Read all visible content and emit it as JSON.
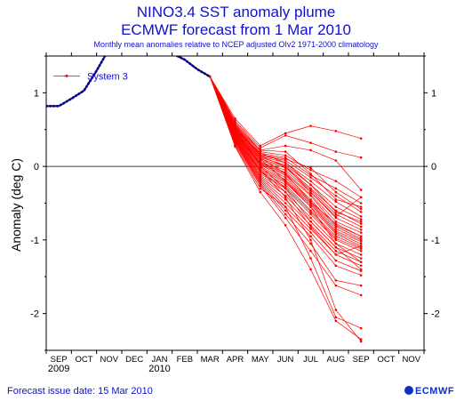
{
  "title_line1": "NINO3.4 SST anomaly plume",
  "title_line2": "ECMWF forecast from 1 Mar 2010",
  "subtitle": "Monthly mean anomalies relative to NCEP adjusted OIv2 1971-2000 climatology",
  "issue_date": "Forecast issue date: 15 Mar 2010",
  "logo_text": "ECMWF",
  "colors": {
    "title": "#1010cc",
    "forecast": "#ff0000",
    "observed": "#000080",
    "axis": "#000000"
  },
  "chart_data": {
    "type": "line",
    "ylabel": "Anomaly (deg C)",
    "xlabel": "",
    "ylim": [
      -2.5,
      1.5
    ],
    "xlim": [
      -0.5,
      14.5
    ],
    "yticks": [
      -2,
      -1,
      0,
      1
    ],
    "month_labels": [
      "SEP",
      "OCT",
      "NOV",
      "DEC",
      "JAN",
      "FEB",
      "MAR",
      "APR",
      "MAY",
      "JUN",
      "JUL",
      "AUG",
      "SEP",
      "OCT",
      "NOV"
    ],
    "year_labels": [
      {
        "label": "2009",
        "x": 0
      },
      {
        "label": "2010",
        "x": 4
      }
    ],
    "legend": {
      "label": "System 3",
      "position": "top-left"
    },
    "observed": {
      "x": [
        -0.5,
        0,
        0.5,
        1,
        1.5,
        2,
        3,
        4,
        5,
        5.5,
        6
      ],
      "y": [
        0.82,
        0.82,
        0.92,
        1.03,
        1.3,
        1.6,
        1.78,
        1.62,
        1.45,
        1.32,
        1.22
      ]
    },
    "forecast": {
      "series_label": "System 3",
      "x": [
        6,
        7,
        8,
        9,
        10,
        11,
        12
      ],
      "members": [
        [
          1.22,
          0.65,
          0.28,
          0.45,
          0.55,
          0.48,
          0.38
        ],
        [
          1.22,
          0.62,
          0.25,
          0.42,
          0.32,
          0.2,
          0.12
        ],
        [
          1.22,
          0.6,
          0.22,
          0.28,
          0.22,
          0.08,
          -0.32
        ],
        [
          1.22,
          0.58,
          0.2,
          0.15,
          -0.05,
          -0.2,
          -0.42
        ],
        [
          1.22,
          0.56,
          0.18,
          0.12,
          -0.12,
          -0.3,
          -0.5
        ],
        [
          1.22,
          0.55,
          0.16,
          0.1,
          -0.02,
          -0.35,
          -0.58
        ],
        [
          1.22,
          0.54,
          0.15,
          0.08,
          -0.15,
          -0.4,
          -0.62
        ],
        [
          1.22,
          0.53,
          0.14,
          0.05,
          -0.2,
          -0.48,
          -0.68
        ],
        [
          1.22,
          0.52,
          0.12,
          0.02,
          -0.25,
          -0.55,
          -0.72
        ],
        [
          1.22,
          0.51,
          0.1,
          0.0,
          -0.3,
          -0.6,
          -0.78
        ],
        [
          1.22,
          0.5,
          0.08,
          -0.02,
          -0.32,
          -0.65,
          -0.82
        ],
        [
          1.22,
          0.49,
          0.06,
          -0.05,
          -0.35,
          -0.7,
          -0.86
        ],
        [
          1.22,
          0.48,
          0.05,
          -0.08,
          -0.38,
          -0.75,
          -0.9
        ],
        [
          1.22,
          0.47,
          0.04,
          -0.1,
          -0.4,
          -0.8,
          -0.95
        ],
        [
          1.22,
          0.46,
          0.03,
          -0.12,
          -0.45,
          -0.82,
          -0.98
        ],
        [
          1.22,
          0.45,
          0.02,
          -0.15,
          -0.48,
          -0.85,
          -1.0
        ],
        [
          1.22,
          0.44,
          0.0,
          -0.18,
          -0.5,
          -0.88,
          -1.02
        ],
        [
          1.22,
          0.43,
          -0.02,
          -0.2,
          -0.52,
          -0.9,
          -1.05
        ],
        [
          1.22,
          0.42,
          -0.04,
          -0.22,
          -0.55,
          -0.92,
          -1.08
        ],
        [
          1.22,
          0.41,
          -0.06,
          -0.25,
          -0.6,
          -0.95,
          -1.1
        ],
        [
          1.22,
          0.4,
          -0.08,
          -0.28,
          -0.62,
          -0.98,
          -1.12
        ],
        [
          1.22,
          0.39,
          -0.1,
          -0.3,
          -0.65,
          -1.0,
          -1.15
        ],
        [
          1.22,
          0.38,
          -0.12,
          -0.35,
          -0.7,
          -1.05,
          -1.2
        ],
        [
          1.22,
          0.37,
          -0.14,
          -0.4,
          -0.75,
          -1.1,
          -1.25
        ],
        [
          1.22,
          0.36,
          -0.16,
          -0.45,
          -0.8,
          -1.15,
          -1.3
        ],
        [
          1.22,
          0.35,
          -0.18,
          -0.5,
          -0.85,
          -1.2,
          -1.35
        ],
        [
          1.22,
          0.34,
          -0.2,
          -0.55,
          -0.9,
          -1.28,
          -1.42
        ],
        [
          1.22,
          0.33,
          -0.22,
          -0.6,
          -0.95,
          -1.35,
          -1.48
        ],
        [
          1.22,
          0.32,
          -0.24,
          -0.65,
          -1.05,
          -1.55,
          -1.62
        ],
        [
          1.22,
          0.3,
          -0.26,
          -0.7,
          -1.15,
          -1.62,
          -1.75
        ],
        [
          1.22,
          0.28,
          -0.3,
          -0.55,
          -1.25,
          -2.05,
          -2.2
        ],
        [
          1.22,
          0.27,
          -0.35,
          -0.8,
          -1.4,
          -2.1,
          -2.35
        ],
        [
          1.22,
          0.36,
          -0.05,
          -0.42,
          -1.0,
          -1.95,
          -2.38
        ],
        [
          1.22,
          0.45,
          0.1,
          -0.2,
          -0.55,
          -1.05,
          -1.3
        ],
        [
          1.22,
          0.5,
          0.18,
          0.05,
          -0.25,
          -0.62,
          -0.75
        ],
        [
          1.22,
          0.57,
          0.22,
          0.2,
          -0.1,
          -0.45,
          -0.55
        ],
        [
          1.22,
          0.44,
          0.0,
          -0.3,
          -0.75,
          -1.1,
          -1.4
        ],
        [
          1.22,
          0.42,
          -0.05,
          -0.35,
          -0.82,
          -1.2,
          -1.08
        ],
        [
          1.22,
          0.49,
          0.12,
          -0.1,
          -0.48,
          -0.78,
          -0.95
        ],
        [
          1.22,
          0.53,
          0.14,
          0.0,
          -0.35,
          -0.68,
          -0.42
        ]
      ]
    }
  }
}
